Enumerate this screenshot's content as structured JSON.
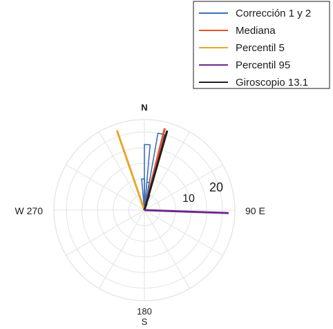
{
  "chart_data": {
    "type": "polar-rose",
    "compass": {
      "north": "N",
      "east": "90 E",
      "south_deg": "180",
      "south": "S",
      "west": "W 270"
    },
    "radial_ticks": [
      "10",
      "20"
    ],
    "rmax": 29,
    "grid": true,
    "legend_position": "top-right",
    "legend": [
      {
        "name": "Corrección 1 y 2",
        "color": "#3d6eb7"
      },
      {
        "name": "Mediana",
        "color": "#e0542a"
      },
      {
        "name": "Percentil 5",
        "color": "#e9a627"
      },
      {
        "name": "Percentil 95",
        "color": "#6d2a8a"
      },
      {
        "name": "Giroscopio 13.1",
        "color": "#1f1f1f"
      }
    ],
    "histogram": {
      "series": "Corrección 1 y 2",
      "bin_width_deg": 5,
      "bins": [
        {
          "start": 0,
          "value": 21
        },
        {
          "start": 5,
          "value": 9
        },
        {
          "start": 10,
          "value": 25
        },
        {
          "start": 15,
          "value": 5
        },
        {
          "start": 20,
          "value": 2
        },
        {
          "start": 355,
          "value": 10
        },
        {
          "start": 350,
          "value": 2
        }
      ]
    },
    "lines": [
      {
        "series": "Percentil 5",
        "angle": 341,
        "value": 27,
        "color": "#e9a627",
        "width": 3
      },
      {
        "series": "Mediana",
        "angle": 14,
        "value": 27,
        "color": "#e0542a",
        "width": 3
      },
      {
        "series": "Giroscopio 13.1",
        "angle": 16,
        "value": 26.5,
        "color": "#1f1f1f",
        "width": 3
      },
      {
        "series": "Percentil 95",
        "angle": 92,
        "value": 27,
        "color": "#6d2a8a",
        "width": 3
      }
    ]
  }
}
